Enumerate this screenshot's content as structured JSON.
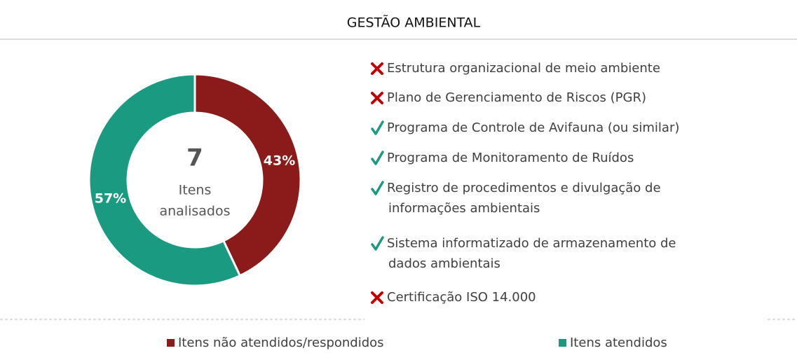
{
  "chart_data": {
    "type": "donut",
    "title": "GESTÃO  AMBIENTAL",
    "categories": [
      "Itens não atendidos/respondidos",
      "Itens atendidos"
    ],
    "values": [
      43,
      57
    ],
    "value_labels": [
      "43%",
      "57%"
    ],
    "colors": [
      "#8b1a1a",
      "#1a9a80"
    ],
    "center_value": 7,
    "center_label": [
      "Itens",
      "analisados"
    ]
  },
  "checklist": [
    {
      "status": "cross",
      "lines": [
        "Estrutura organizacional de meio ambiente"
      ]
    },
    {
      "status": "cross",
      "lines": [
        "Plano de Gerenciamento de Riscos (PGR)"
      ]
    },
    {
      "status": "check",
      "lines": [
        "Programa de Controle de Avifauna (ou similar)"
      ]
    },
    {
      "status": "check",
      "lines": [
        "Programa de Monitoramento de Ruídos"
      ]
    },
    {
      "status": "check",
      "lines": [
        "Registro de procedimentos e divulgação de",
        "informações ambientais"
      ]
    },
    {
      "status": "check",
      "lines": [
        "Sistema informatizado de armazenamento de",
        "dados ambientais"
      ]
    },
    {
      "status": "cross",
      "lines": [
        "Certificação ISO 14.000"
      ]
    }
  ]
}
